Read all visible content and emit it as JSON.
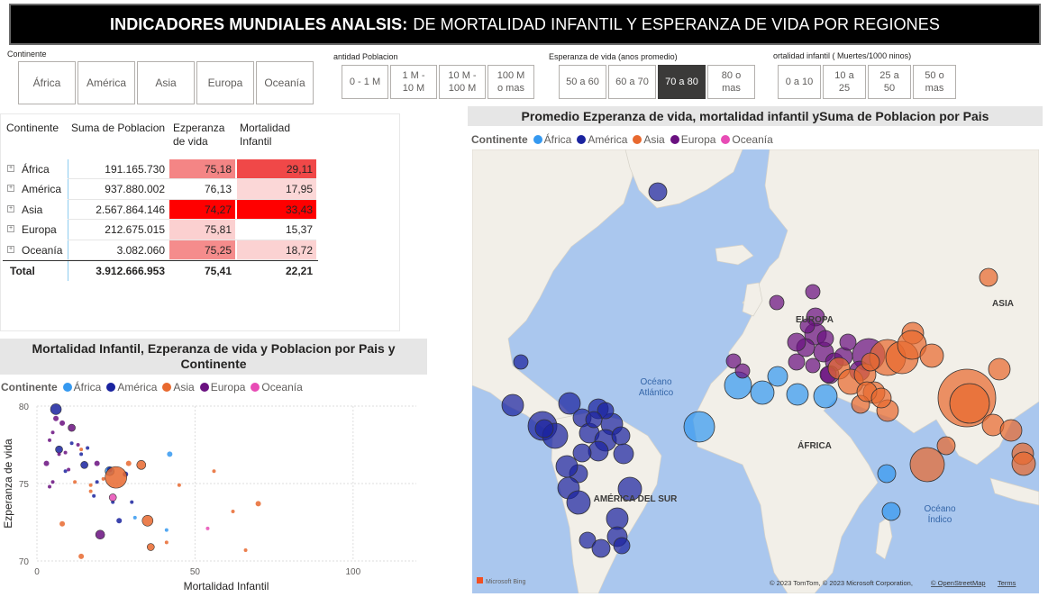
{
  "header": {
    "title_bold": "INDICADORES MUNDIALES ANALSIS:",
    "title_rest": "DE MORTALIDAD INFANTIL Y ESPERANZA DE VIDA POR REGIONES"
  },
  "slicers": {
    "continente": {
      "title": "Continente",
      "options": [
        "África",
        "América",
        "Asia",
        "Europa",
        "Oceanía"
      ]
    },
    "poblacion": {
      "title": "antidad Poblacion",
      "options": [
        "0 - 1 M",
        "1 M -\n10 M",
        "10 M -\n100 M",
        "100 M\no mas"
      ]
    },
    "esperanza": {
      "title": "Esperanza de vida (anos promedio)",
      "options": [
        "50 a 60",
        "60 a 70",
        "70 a 80",
        "80 o\nmas"
      ],
      "selected": "70 a 80"
    },
    "mortalidad": {
      "title": "ortalidad infantil ( Muertes/1000 ninos)",
      "options": [
        "0 a 10",
        "10 a\n25",
        "25 a\n50",
        "50 o\nmas"
      ]
    }
  },
  "table": {
    "headers": {
      "continente": "Continente",
      "poblacion": "Suma de Poblacion",
      "esperanza": "Ezperanza\nde vida",
      "mortalidad": "Mortalidad\nInfantil"
    },
    "rows": [
      {
        "continente": "África",
        "poblacion": "191.165.730",
        "esperanza": "75,18",
        "mortalidad": "29,11",
        "esp_bg": "#f48585",
        "mort_bg": "#f04848"
      },
      {
        "continente": "América",
        "poblacion": "937.880.002",
        "esperanza": "76,13",
        "mortalidad": "17,95",
        "esp_bg": "#ffffff",
        "mort_bg": "#fbd7d7"
      },
      {
        "continente": "Asia",
        "poblacion": "2.567.864.146",
        "esperanza": "74,27",
        "mortalidad": "33,43",
        "esp_bg": "#ff0000",
        "mort_bg": "#ff0000"
      },
      {
        "continente": "Europa",
        "poblacion": "212.675.015",
        "esperanza": "75,81",
        "mortalidad": "15,37",
        "esp_bg": "#fbd0d0",
        "mort_bg": "#ffffff"
      },
      {
        "continente": "Oceanía",
        "poblacion": "3.082.060",
        "esperanza": "75,25",
        "mortalidad": "18,72",
        "esp_bg": "#f58c8c",
        "mort_bg": "#fbd2d2"
      }
    ],
    "total": {
      "label": "Total",
      "poblacion": "3.912.666.953",
      "esperanza": "75,41",
      "mortalidad": "22,21"
    }
  },
  "legend": {
    "title": "Continente",
    "items": [
      {
        "label": "África",
        "color": "#3599F0"
      },
      {
        "label": "América",
        "color": "#1A239F"
      },
      {
        "label": "Asia",
        "color": "#E8692F"
      },
      {
        "label": "Europa",
        "color": "#6A1180"
      },
      {
        "label": "Oceanía",
        "color": "#E84CB5"
      }
    ]
  },
  "scatter": {
    "title": "Mortalidad Infantil, Ezperanza de vida y Poblacion por Pais y Continente",
    "xlabel": "Mortalidad Infantil",
    "ylabel": "Ezperanza de vida",
    "x_ticks": [
      "0",
      "50",
      "100"
    ],
    "y_ticks": [
      "80",
      "75",
      "70"
    ]
  },
  "map": {
    "title": "Promedio Ezperanza de vida, mortalidad infantil ySuma de Poblacion por Pais",
    "labels": [
      "EUROPA",
      "ASIA",
      "ÁFRICA",
      "AMÉRICA DEL SUR"
    ],
    "ocean_atl": [
      "Océano",
      "Atlántico"
    ],
    "ocean_ind": [
      "Océano",
      "Índico"
    ],
    "bing": "Microsoft Bing",
    "copyright": "© 2023 TomTom, © 2023 Microsoft Corporation, ",
    "osm": "© OpenStreetMap",
    "terms": "Terms"
  },
  "chart_data": {
    "type": "scatter",
    "title": "Mortalidad Infantil, Ezperanza de vida y Poblacion por Pais y Continente",
    "xlabel": "Mortalidad Infantil",
    "ylabel": "Ezperanza de vida",
    "xlim": [
      0,
      120
    ],
    "ylim": [
      70,
      80
    ],
    "x_ticks": [
      0,
      50,
      100
    ],
    "y_ticks": [
      70,
      75,
      80
    ],
    "series": [
      {
        "name": "África",
        "points": [
          [
            42,
            76.9
          ],
          [
            31,
            72.8
          ],
          [
            41,
            72.0
          ],
          [
            23,
            75.8
          ]
        ]
      },
      {
        "name": "América",
        "points": [
          [
            6,
            79.8
          ],
          [
            23,
            75.9
          ],
          [
            30,
            73.8
          ],
          [
            15,
            76.2
          ],
          [
            11,
            77.6
          ],
          [
            18,
            74.2
          ],
          [
            26,
            72.6
          ],
          [
            16,
            77.3
          ],
          [
            24,
            73.8
          ],
          [
            7,
            77.2
          ],
          [
            14,
            76.9
          ],
          [
            28,
            75.6
          ],
          [
            19,
            75.1
          ],
          [
            9,
            75.8
          ]
        ]
      },
      {
        "name": "Asia",
        "points": [
          [
            25,
            75.4
          ],
          [
            35,
            72.6
          ],
          [
            62,
            73.2
          ],
          [
            29,
            76.3
          ],
          [
            17,
            74.5
          ],
          [
            21,
            75.3
          ],
          [
            36,
            70.9
          ],
          [
            45,
            74.9
          ],
          [
            14,
            70.3
          ],
          [
            12,
            75.1
          ],
          [
            41,
            71.2
          ],
          [
            66,
            70.7
          ],
          [
            70,
            73.7
          ],
          [
            17,
            74.9
          ],
          [
            14,
            77.2
          ],
          [
            33,
            76.2
          ],
          [
            8,
            72.4
          ],
          [
            56,
            75.8
          ]
        ]
      },
      {
        "name": "Europa",
        "points": [
          [
            8,
            78.9
          ],
          [
            5,
            78.3
          ],
          [
            4,
            77.8
          ],
          [
            11,
            78.6
          ],
          [
            7,
            76.9
          ],
          [
            3,
            76.3
          ],
          [
            10,
            75.9
          ],
          [
            13,
            77.5
          ],
          [
            5,
            75.1
          ],
          [
            6,
            79.2
          ],
          [
            9,
            77.0
          ],
          [
            4,
            74.8
          ],
          [
            20,
            71.7
          ],
          [
            19,
            76.3
          ]
        ]
      },
      {
        "name": "Oceanía",
        "points": [
          [
            24,
            74.1
          ],
          [
            54,
            72.1
          ]
        ]
      }
    ]
  }
}
